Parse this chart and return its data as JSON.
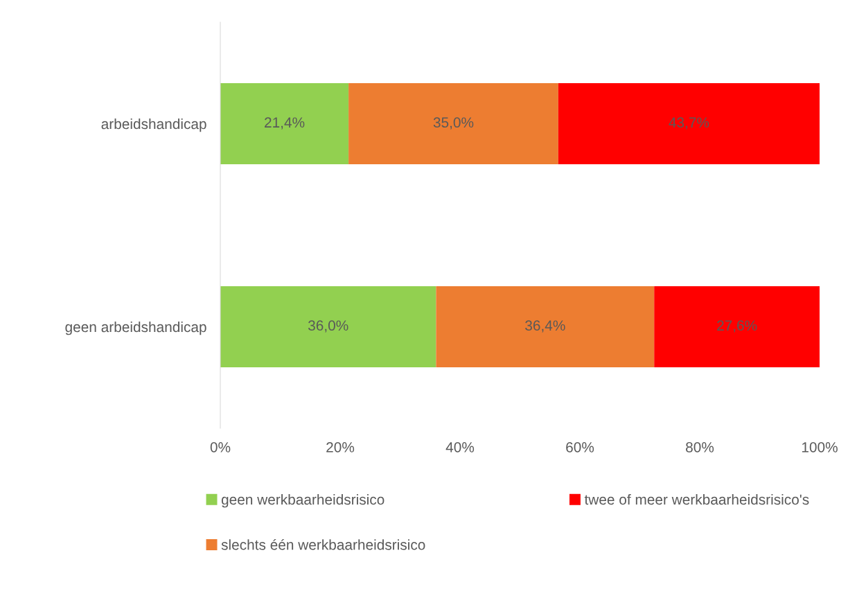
{
  "chart_data": {
    "type": "bar",
    "orientation": "horizontal",
    "stacked": true,
    "categories": [
      "arbeidshandicap",
      "geen arbeidshandicap"
    ],
    "series": [
      {
        "name": "geen werkbaarheidsrisico",
        "color": "#92d050",
        "values": [
          21.4,
          36.0
        ],
        "value_labels": [
          "21,4%",
          "36,0%"
        ]
      },
      {
        "name": "slechts één werkbaarheidsrisico",
        "color": "#ed7d31",
        "values": [
          35.0,
          36.4
        ],
        "value_labels": [
          "35,0%",
          "36,4%"
        ]
      },
      {
        "name": "twee of meer werkbaarheidsrisico's",
        "color": "#ff0000",
        "values": [
          43.7,
          27.6
        ],
        "value_labels": [
          "43,7%",
          "27,6%"
        ]
      }
    ],
    "xlim": [
      0,
      100
    ],
    "xticks": [
      {
        "value": 0,
        "label": "0%"
      },
      {
        "value": 20,
        "label": "20%"
      },
      {
        "value": 40,
        "label": "40%"
      },
      {
        "value": 60,
        "label": "60%"
      },
      {
        "value": 80,
        "label": "80%"
      },
      {
        "value": 100,
        "label": "100%"
      }
    ],
    "grid": false,
    "legend": "bottom"
  }
}
